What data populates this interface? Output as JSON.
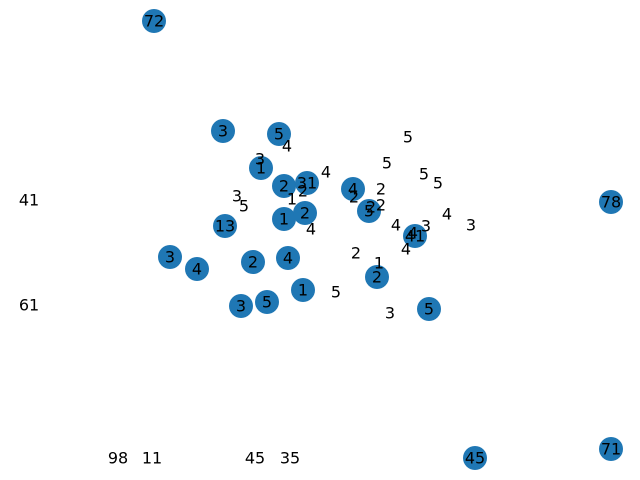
{
  "graph": {
    "node_color": "#1f77b4",
    "label_color": "#000000",
    "nodes": [
      {
        "label": "72"
      },
      {
        "label": "3"
      },
      {
        "label": "5"
      },
      {
        "label": "1"
      },
      {
        "label": "2"
      },
      {
        "label": "31"
      },
      {
        "label": "4"
      },
      {
        "label": "1"
      },
      {
        "label": "2"
      },
      {
        "label": "5"
      },
      {
        "label": "13"
      },
      {
        "label": "41"
      },
      {
        "label": "78"
      },
      {
        "label": "3"
      },
      {
        "label": "4"
      },
      {
        "label": "2"
      },
      {
        "label": "4"
      },
      {
        "label": "2"
      },
      {
        "label": "1"
      },
      {
        "label": "3"
      },
      {
        "label": "5"
      },
      {
        "label": "5"
      },
      {
        "label": "45"
      },
      {
        "label": "71"
      }
    ],
    "free_labels": [
      {
        "text": "4"
      },
      {
        "text": "3"
      },
      {
        "text": "4"
      },
      {
        "text": "5"
      },
      {
        "text": "5"
      },
      {
        "text": "5"
      },
      {
        "text": "5"
      },
      {
        "text": "2"
      },
      {
        "text": "3"
      },
      {
        "text": "5"
      },
      {
        "text": "1"
      },
      {
        "text": "2"
      },
      {
        "text": "2"
      },
      {
        "text": "2"
      },
      {
        "text": "2"
      },
      {
        "text": "4"
      },
      {
        "text": "4"
      },
      {
        "text": "3"
      },
      {
        "text": "4"
      },
      {
        "text": "3"
      },
      {
        "text": "4"
      },
      {
        "text": "2"
      },
      {
        "text": "1"
      },
      {
        "text": "4"
      },
      {
        "text": "5"
      },
      {
        "text": "3"
      },
      {
        "text": "41"
      },
      {
        "text": "61"
      },
      {
        "text": "98"
      },
      {
        "text": "11"
      },
      {
        "text": "45"
      },
      {
        "text": "35"
      }
    ]
  }
}
